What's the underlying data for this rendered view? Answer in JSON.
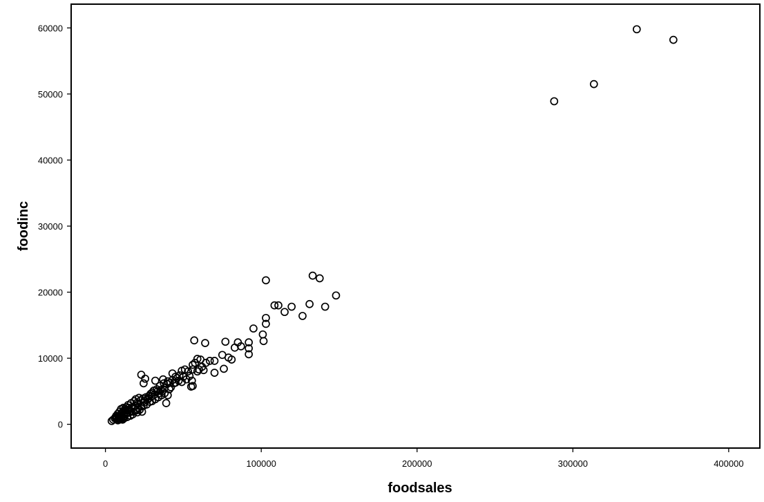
{
  "chart_data": {
    "type": "scatter",
    "title": "",
    "xlabel": "foodsales",
    "ylabel": "foodinc",
    "xlim": [
      -22000,
      420000
    ],
    "ylim": [
      -3600,
      63600
    ],
    "xticks": [
      0,
      100000,
      200000,
      300000,
      400000
    ],
    "yticks": [
      0,
      10000,
      20000,
      30000,
      40000,
      50000,
      60000
    ],
    "xtick_labels": [
      "0",
      "100000",
      "200000",
      "300000",
      "400000"
    ],
    "ytick_labels": [
      "0",
      "10000",
      "20000",
      "30000",
      "40000",
      "50000",
      "60000"
    ],
    "grid": false,
    "legend": false,
    "marker": "open-circle",
    "color": "#000000",
    "series": [
      {
        "points": [
          [
            341000,
            59800
          ],
          [
            364500,
            58200
          ],
          [
            313500,
            51500
          ],
          [
            288000,
            48900
          ],
          [
            133000,
            22500
          ],
          [
            137500,
            22100
          ],
          [
            103000,
            21800
          ],
          [
            148000,
            19500
          ],
          [
            108500,
            18000
          ],
          [
            111000,
            18000
          ],
          [
            119500,
            17800
          ],
          [
            131000,
            18200
          ],
          [
            141000,
            17800
          ],
          [
            115000,
            17000
          ],
          [
            126500,
            16400
          ],
          [
            103000,
            16100
          ],
          [
            103000,
            15200
          ],
          [
            95000,
            14500
          ],
          [
            101000,
            13600
          ],
          [
            101500,
            12600
          ],
          [
            57000,
            12700
          ],
          [
            64000,
            12300
          ],
          [
            77000,
            12500
          ],
          [
            85000,
            12400
          ],
          [
            92000,
            12400
          ],
          [
            87000,
            11800
          ],
          [
            83000,
            11600
          ],
          [
            92000,
            11500
          ],
          [
            92000,
            10600
          ],
          [
            75000,
            10500
          ],
          [
            79000,
            10100
          ],
          [
            81000,
            9800
          ],
          [
            59000,
            9900
          ],
          [
            61000,
            9800
          ],
          [
            67000,
            9600
          ],
          [
            70000,
            9600
          ],
          [
            64500,
            9300
          ],
          [
            56000,
            9000
          ],
          [
            62000,
            8700
          ],
          [
            60000,
            8300
          ],
          [
            63000,
            8200
          ],
          [
            59000,
            8000
          ],
          [
            76000,
            8400
          ],
          [
            70000,
            7800
          ],
          [
            23000,
            7500
          ],
          [
            25500,
            6900
          ],
          [
            24500,
            6200
          ],
          [
            32000,
            6600
          ],
          [
            37000,
            6800
          ],
          [
            40000,
            6500
          ],
          [
            43000,
            7700
          ],
          [
            46000,
            7000
          ],
          [
            49000,
            8100
          ],
          [
            51000,
            8300
          ],
          [
            53000,
            8000
          ],
          [
            56000,
            8300
          ],
          [
            54000,
            7300
          ],
          [
            49000,
            6400
          ],
          [
            45000,
            6300
          ],
          [
            43000,
            6700
          ],
          [
            41000,
            5300
          ],
          [
            38000,
            4700
          ],
          [
            36000,
            4400
          ],
          [
            34000,
            4100
          ],
          [
            32000,
            3800
          ],
          [
            30000,
            3500
          ],
          [
            29000,
            4600
          ],
          [
            33000,
            5300
          ],
          [
            35000,
            5800
          ],
          [
            38000,
            5500
          ],
          [
            40000,
            4400
          ],
          [
            39000,
            3200
          ],
          [
            55000,
            5700
          ],
          [
            56000,
            5800
          ],
          [
            55500,
            6600
          ],
          [
            52000,
            6800
          ],
          [
            50000,
            7200
          ],
          [
            47000,
            6600
          ],
          [
            44000,
            6200
          ],
          [
            42000,
            5600
          ],
          [
            27000,
            3700
          ],
          [
            25000,
            3300
          ],
          [
            23000,
            2700
          ],
          [
            21000,
            2500
          ],
          [
            20000,
            2100
          ],
          [
            18000,
            1900
          ],
          [
            17000,
            2400
          ],
          [
            15000,
            2200
          ],
          [
            14000,
            1700
          ],
          [
            13000,
            1500
          ],
          [
            12000,
            1200
          ],
          [
            11000,
            1000
          ],
          [
            10000,
            800
          ],
          [
            9000,
            700
          ],
          [
            8000,
            600
          ],
          [
            7000,
            800
          ],
          [
            6000,
            900
          ],
          [
            5000,
            700
          ],
          [
            4000,
            500
          ],
          [
            8500,
            1100
          ],
          [
            9500,
            1400
          ],
          [
            10500,
            1700
          ],
          [
            11500,
            2000
          ],
          [
            12500,
            2300
          ],
          [
            13500,
            2600
          ],
          [
            14500,
            2900
          ],
          [
            16500,
            3200
          ],
          [
            18500,
            3500
          ],
          [
            19500,
            3800
          ],
          [
            21500,
            4000
          ],
          [
            22500,
            3600
          ],
          [
            24000,
            3900
          ],
          [
            26000,
            4100
          ],
          [
            28000,
            4300
          ],
          [
            30000,
            4800
          ],
          [
            31000,
            5100
          ],
          [
            33500,
            5000
          ],
          [
            35500,
            5200
          ],
          [
            37500,
            6200
          ],
          [
            26500,
            3000
          ],
          [
            24500,
            2800
          ],
          [
            22000,
            2200
          ],
          [
            20500,
            1800
          ],
          [
            23500,
            1900
          ],
          [
            17500,
            1500
          ],
          [
            16000,
            1300
          ],
          [
            15500,
            1800
          ],
          [
            13000,
            2100
          ],
          [
            11500,
            2500
          ],
          [
            10000,
            2300
          ],
          [
            9000,
            1900
          ],
          [
            8000,
            1600
          ],
          [
            7000,
            1300
          ],
          [
            6500,
            1100
          ],
          [
            11000,
            700
          ],
          [
            12000,
            900
          ],
          [
            14000,
            1100
          ],
          [
            19000,
            2800
          ],
          [
            21000,
            3100
          ],
          [
            25000,
            3600
          ],
          [
            27500,
            3900
          ],
          [
            29500,
            4200
          ],
          [
            31500,
            4500
          ],
          [
            36500,
            5000
          ],
          [
            28500,
            3400
          ],
          [
            18000,
            2600
          ],
          [
            15000,
            2500
          ],
          [
            12500,
            1800
          ],
          [
            9500,
            1000
          ],
          [
            8500,
            900
          ],
          [
            7500,
            1000
          ],
          [
            10500,
            1300
          ],
          [
            16000,
            2000
          ],
          [
            20000,
            3200
          ],
          [
            34500,
            4700
          ],
          [
            39500,
            6100
          ],
          [
            41500,
            6300
          ],
          [
            45000,
            7200
          ],
          [
            47500,
            7400
          ],
          [
            57500,
            9300
          ]
        ]
      }
    ]
  }
}
